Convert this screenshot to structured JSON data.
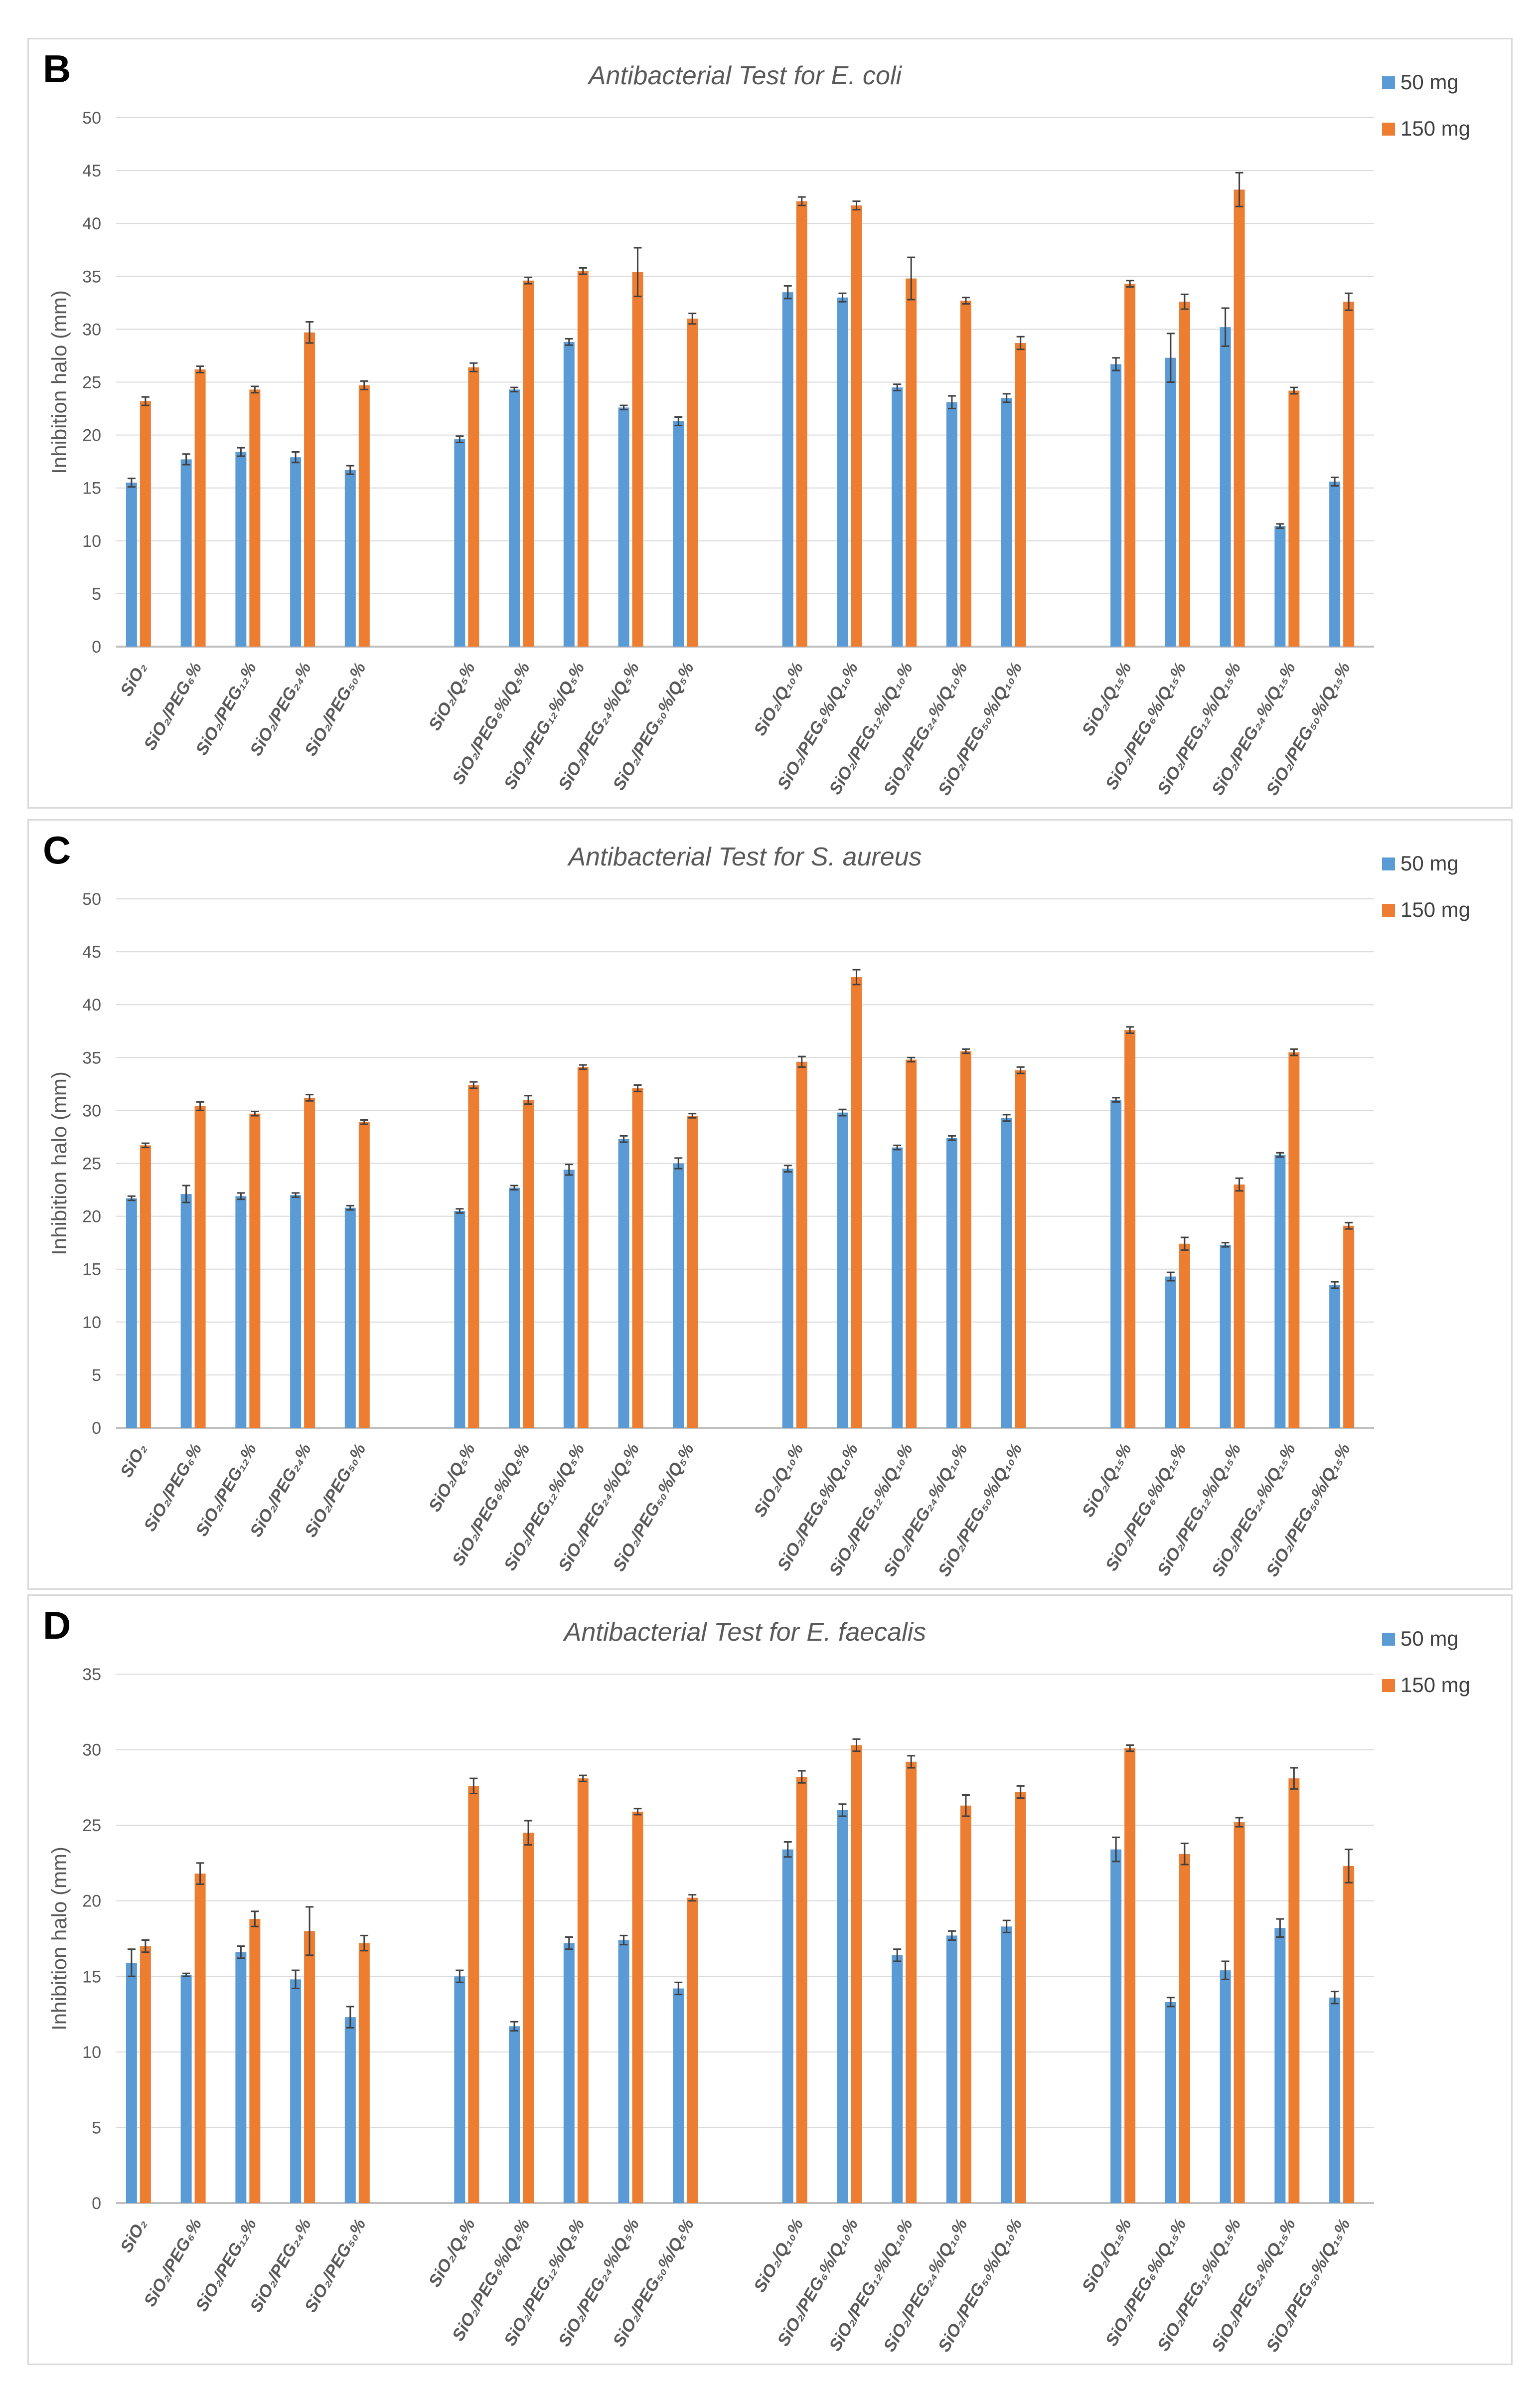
{
  "chart_data": [
    {
      "panel_label": "B",
      "type": "bar",
      "title": "Antibacterial Test for E. coli",
      "ylabel": "Inhibition halo (mm)",
      "xlabel": "",
      "ylim": [
        0,
        50
      ],
      "yticks": [
        0,
        5,
        10,
        15,
        20,
        25,
        30,
        35,
        40,
        45,
        50
      ],
      "grid": true,
      "legend_position": "right",
      "categories": [
        "SiO₂",
        "SiO₂/PEG₆%",
        "SiO₂/PEG₁₂%",
        "SiO₂/PEG₂₄%",
        "SiO₂/PEG₅₀%",
        "SiO₂/Q₅%",
        "SiO₂/PEG₆%/Q₅%",
        "SiO₂/PEG₁₂%/Q₅%",
        "SiO₂/PEG₂₄%/Q₅%",
        "SiO₂/PEG₅₀%/Q₅%",
        "SiO₂/Q₁₀%",
        "SiO₂/PEG₆%/Q₁₀%",
        "SiO₂/PEG₁₂%/Q₁₀%",
        "SiO₂/PEG₂₄%/Q₁₀%",
        "SiO₂/PEG₅₀%/Q₁₀%",
        "SiO₂/Q₁₅%",
        "SiO₂/PEG₆%/Q₁₅%",
        "SiO₂/PEG₁₂%/Q₁₅%",
        "SiO₂/PEG₂₄%/Q₁₅%",
        "SiO₂/PEG₅₀%/Q₁₅%"
      ],
      "series": [
        {
          "name": "50 mg",
          "color": "#5b9bd5",
          "values": [
            15.5,
            17.7,
            18.4,
            17.9,
            16.7,
            19.6,
            24.3,
            28.8,
            22.6,
            21.3,
            33.5,
            33.0,
            24.5,
            23.1,
            23.5,
            26.7,
            27.3,
            30.2,
            11.4,
            15.6
          ],
          "errors": [
            0.4,
            0.5,
            0.4,
            0.5,
            0.4,
            0.3,
            0.2,
            0.3,
            0.2,
            0.4,
            0.6,
            0.4,
            0.3,
            0.6,
            0.4,
            0.6,
            2.3,
            1.8,
            0.2,
            0.4
          ]
        },
        {
          "name": "150 mg",
          "color": "#ed7d31",
          "values": [
            23.2,
            26.2,
            24.3,
            29.7,
            24.7,
            26.4,
            34.6,
            35.5,
            35.4,
            31.0,
            42.1,
            41.7,
            34.8,
            32.7,
            28.7,
            34.3,
            32.6,
            43.2,
            24.2,
            32.6
          ],
          "errors": [
            0.4,
            0.3,
            0.3,
            1.0,
            0.4,
            0.4,
            0.3,
            0.3,
            2.3,
            0.5,
            0.4,
            0.4,
            2.0,
            0.3,
            0.6,
            0.3,
            0.7,
            1.6,
            0.3,
            0.8
          ]
        }
      ]
    },
    {
      "panel_label": "C",
      "type": "bar",
      "title": "Antibacterial Test for S. aureus",
      "ylabel": "Inhibition halo (mm)",
      "xlabel": "",
      "ylim": [
        0,
        50
      ],
      "yticks": [
        0,
        5,
        10,
        15,
        20,
        25,
        30,
        35,
        40,
        45,
        50
      ],
      "grid": true,
      "legend_position": "right",
      "categories": [
        "SiO₂",
        "SiO₂/PEG₆%",
        "SiO₂/PEG₁₂%",
        "SiO₂/PEG₂₄%",
        "SiO₂/PEG₅₀%",
        "SiO₂/Q₅%",
        "SiO₂/PEG₆%/Q₅%",
        "SiO₂/PEG₁₂%/Q₅%",
        "SiO₂/PEG₂₄%/Q₅%",
        "SiO₂/PEG₅₀%/Q₅%",
        "SiO₂/Q₁₀%",
        "SiO₂/PEG₆%/Q₁₀%",
        "SiO₂/PEG₁₂%/Q₁₀%",
        "SiO₂/PEG₂₄%/Q₁₀%",
        "SiO₂/PEG₅₀%/Q₁₀%",
        "SiO₂/Q₁₅%",
        "SiO₂/PEG₆%/Q₁₅%",
        "SiO₂/PEG₁₂%/Q₁₅%",
        "SiO₂/PEG₂₄%/Q₁₅%",
        "SiO₂/PEG₅₀%/Q₁₅%"
      ],
      "series": [
        {
          "name": "50 mg",
          "color": "#5b9bd5",
          "values": [
            21.7,
            22.1,
            21.9,
            22.0,
            20.8,
            20.5,
            22.7,
            24.4,
            27.3,
            25.0,
            24.5,
            29.8,
            26.5,
            27.4,
            29.3,
            31.0,
            14.3,
            17.3,
            25.8,
            13.5
          ],
          "errors": [
            0.2,
            0.8,
            0.3,
            0.2,
            0.2,
            0.2,
            0.2,
            0.5,
            0.3,
            0.5,
            0.3,
            0.3,
            0.2,
            0.2,
            0.3,
            0.2,
            0.4,
            0.2,
            0.2,
            0.3
          ]
        },
        {
          "name": "150 mg",
          "color": "#ed7d31",
          "values": [
            26.7,
            30.4,
            29.7,
            31.2,
            28.9,
            32.4,
            31.0,
            34.1,
            32.1,
            29.5,
            34.6,
            42.6,
            34.8,
            35.6,
            33.8,
            37.6,
            17.4,
            23.0,
            35.5,
            19.1
          ],
          "errors": [
            0.2,
            0.4,
            0.2,
            0.3,
            0.2,
            0.3,
            0.4,
            0.2,
            0.3,
            0.2,
            0.5,
            0.7,
            0.2,
            0.2,
            0.3,
            0.3,
            0.6,
            0.6,
            0.3,
            0.3
          ]
        }
      ]
    },
    {
      "panel_label": "D",
      "type": "bar",
      "title": "Antibacterial Test for E. faecalis",
      "ylabel": "Inhibition halo (mm)",
      "xlabel": "",
      "ylim": [
        0,
        35
      ],
      "yticks": [
        0,
        5,
        10,
        15,
        20,
        25,
        30,
        35
      ],
      "grid": true,
      "legend_position": "right",
      "categories": [
        "SiO₂",
        "SiO₂/PEG₆%",
        "SiO₂/PEG₁₂%",
        "SiO₂/PEG₂₄%",
        "SiO₂/PEG₅₀%",
        "SiO₂/Q₅%",
        "SiO₂/PEG₆%/Q₅%",
        "SiO₂/PEG₁₂%/Q₅%",
        "SiO₂/PEG₂₄%/Q₅%",
        "SiO₂/PEG₅₀%/Q₅%",
        "SiO₂/Q₁₀%",
        "SiO₂/PEG₆%/Q₁₀%",
        "SiO₂/PEG₁₂%/Q₁₀%",
        "SiO₂/PEG₂₄%/Q₁₀%",
        "SiO₂/PEG₅₀%/Q₁₀%",
        "SiO₂/Q₁₅%",
        "SiO₂/PEG₆%/Q₁₅%",
        "SiO₂/PEG₁₂%/Q₁₅%",
        "SiO₂/PEG₂₄%/Q₁₅%",
        "SiO₂/PEG₅₀%/Q₁₅%"
      ],
      "series": [
        {
          "name": "50 mg",
          "color": "#5b9bd5",
          "values": [
            15.9,
            15.1,
            16.6,
            14.8,
            12.3,
            15.0,
            11.7,
            17.2,
            17.4,
            14.2,
            23.4,
            26.0,
            16.4,
            17.7,
            18.3,
            23.4,
            13.3,
            15.4,
            18.2,
            13.6
          ],
          "errors": [
            0.9,
            0.1,
            0.4,
            0.6,
            0.7,
            0.4,
            0.3,
            0.4,
            0.3,
            0.4,
            0.5,
            0.4,
            0.4,
            0.3,
            0.4,
            0.8,
            0.3,
            0.6,
            0.6,
            0.4
          ]
        },
        {
          "name": "150 mg",
          "color": "#ed7d31",
          "values": [
            17.0,
            21.8,
            18.8,
            18.0,
            17.2,
            27.6,
            24.5,
            28.1,
            25.9,
            20.2,
            28.2,
            30.3,
            29.2,
            26.3,
            27.2,
            30.1,
            23.1,
            25.2,
            28.1,
            22.3
          ],
          "errors": [
            0.4,
            0.7,
            0.5,
            1.6,
            0.5,
            0.5,
            0.8,
            0.2,
            0.2,
            0.2,
            0.4,
            0.4,
            0.4,
            0.7,
            0.4,
            0.2,
            0.7,
            0.3,
            0.7,
            1.1
          ]
        }
      ]
    }
  ]
}
